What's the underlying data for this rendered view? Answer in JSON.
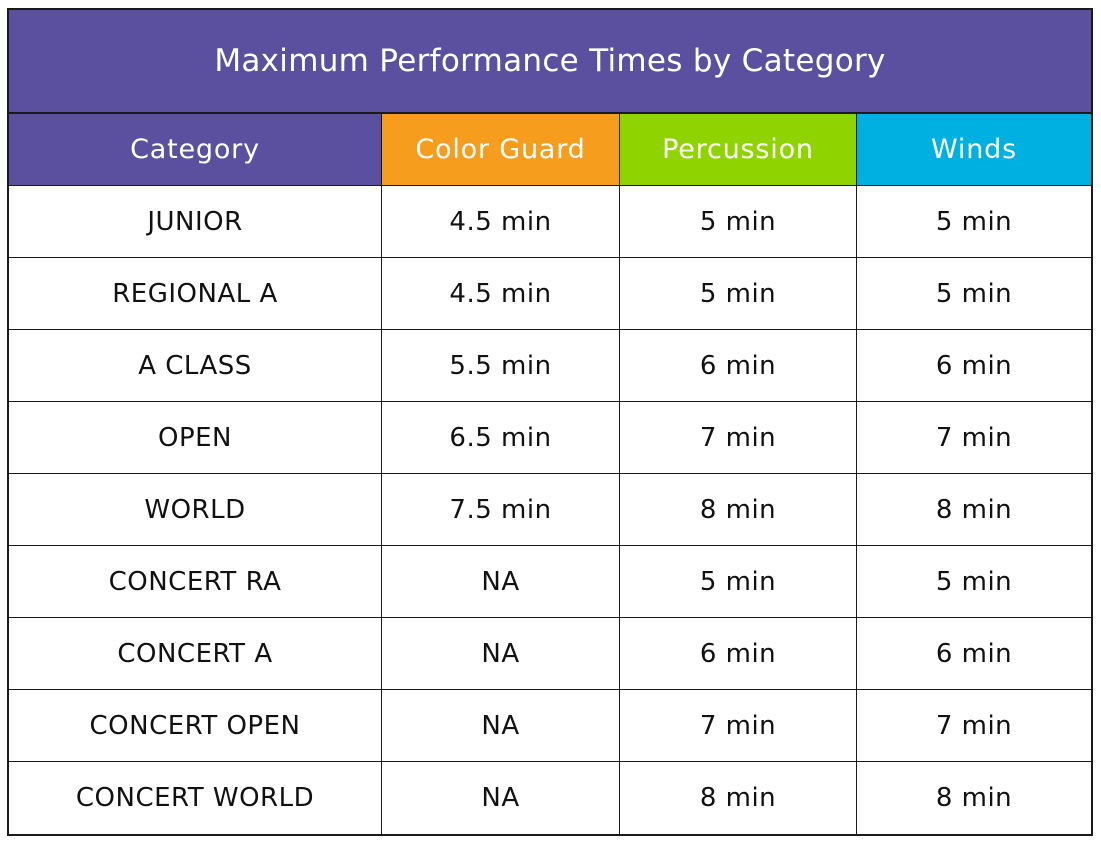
{
  "chart_data": {
    "type": "table",
    "title": "Maximum Performance Times by Category",
    "columns": [
      "Category",
      "Color Guard",
      "Percussion",
      "Winds"
    ],
    "header_colors": [
      "#5b4fa0",
      "#f79d1e",
      "#8fd400",
      "#00b0e0"
    ],
    "title_color": "#5b4fa0",
    "rows": [
      [
        "JUNIOR",
        "4.5 min",
        "5 min",
        "5 min"
      ],
      [
        "REGIONAL A",
        "4.5 min",
        "5 min",
        "5 min"
      ],
      [
        "A CLASS",
        "5.5 min",
        "6 min",
        "6 min"
      ],
      [
        "OPEN",
        "6.5 min",
        "7 min",
        "7 min"
      ],
      [
        "WORLD",
        "7.5 min",
        "8 min",
        "8 min"
      ],
      [
        "CONCERT RA",
        "NA",
        "5 min",
        "5 min"
      ],
      [
        "CONCERT A",
        "NA",
        "6 min",
        "6 min"
      ],
      [
        "CONCERT OPEN",
        "NA",
        "7 min",
        "7 min"
      ],
      [
        "CONCERT WORLD",
        "NA",
        "8 min",
        "8 min"
      ]
    ]
  }
}
